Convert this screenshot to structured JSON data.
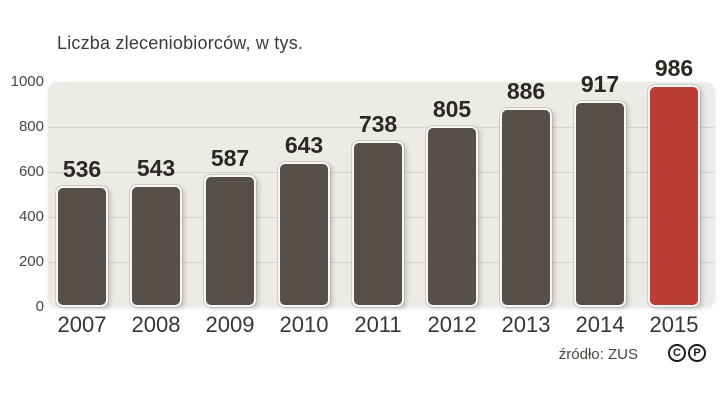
{
  "chart_data": {
    "type": "bar",
    "title": "Liczba zleceniobiorców, w tys.",
    "categories": [
      "2007",
      "2008",
      "2009",
      "2010",
      "2011",
      "2012",
      "2013",
      "2014",
      "2015"
    ],
    "values": [
      536,
      543,
      587,
      643,
      738,
      805,
      886,
      917,
      986
    ],
    "xlabel": "",
    "ylabel": "",
    "ylim": [
      0,
      1000
    ],
    "yticks": [
      0,
      200,
      400,
      600,
      800,
      1000
    ],
    "grid": "horizontal",
    "legend": "none",
    "bar_color": "#564f4a",
    "highlight_color": "#bc3c36",
    "highlighted_category": "2015",
    "plot_background": "#edebe8",
    "source": "źródło: ZUS"
  },
  "footer": {
    "copyright_marks": [
      "C",
      "P"
    ]
  }
}
